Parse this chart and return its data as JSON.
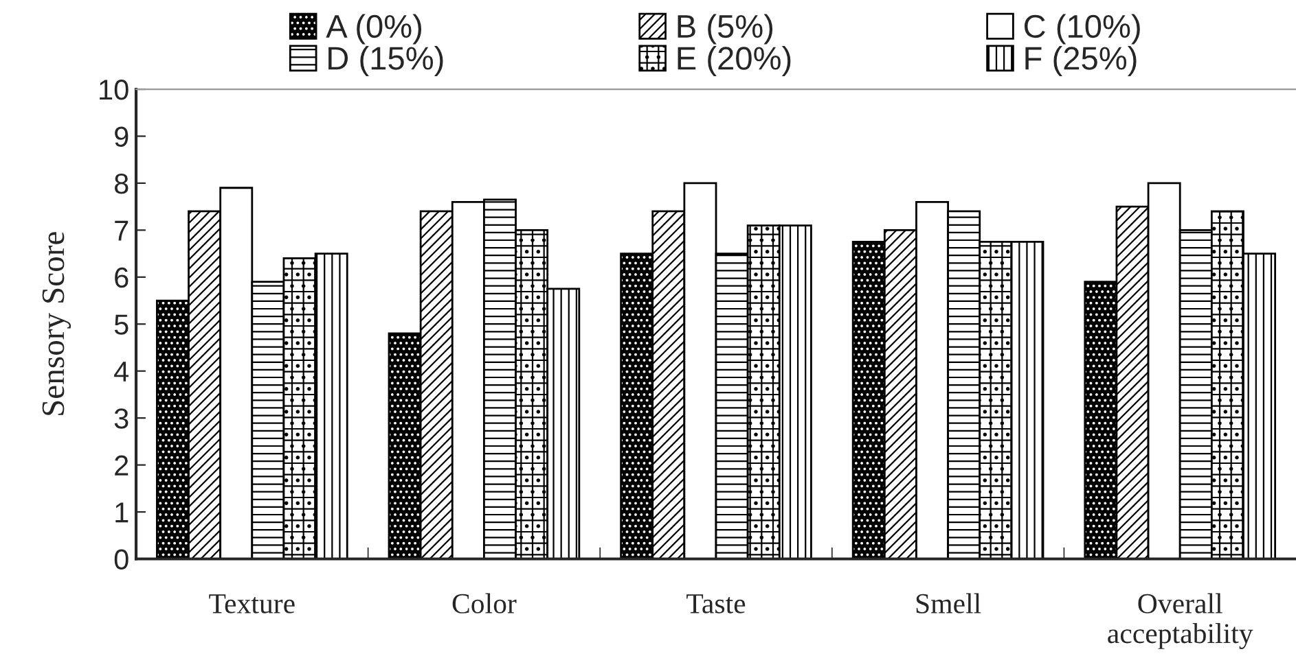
{
  "chart_data": {
    "type": "bar",
    "ylabel": "Sensory Score",
    "categories": [
      "Texture",
      "Color",
      "Taste",
      "Smell",
      "Overall\nacceptability"
    ],
    "series": [
      {
        "name": "A (0%)",
        "color": "#000000",
        "values": [
          5.5,
          4.8,
          6.5,
          6.75,
          5.9
        ]
      },
      {
        "name": "B (5%)",
        "color": "#000000",
        "values": [
          7.4,
          7.4,
          7.4,
          7.0,
          7.5
        ]
      },
      {
        "name": "C (10%)",
        "color": "#ffffff",
        "values": [
          7.9,
          7.6,
          8.0,
          7.6,
          8.0
        ]
      },
      {
        "name": "D (15%)",
        "color": "#000000",
        "values": [
          5.9,
          7.65,
          6.5,
          7.4,
          7.0
        ]
      },
      {
        "name": "E (20%)",
        "color": "#000000",
        "values": [
          6.4,
          7.0,
          7.1,
          6.75,
          7.4
        ]
      },
      {
        "name": "F (25%)",
        "color": "#000000",
        "values": [
          6.5,
          5.75,
          7.1,
          6.75,
          6.5
        ]
      }
    ],
    "ylim": [
      0,
      10
    ],
    "yticks": [
      0,
      1,
      2,
      3,
      4,
      5,
      6,
      7,
      8,
      9,
      10
    ],
    "grid": false,
    "legend": "top"
  }
}
